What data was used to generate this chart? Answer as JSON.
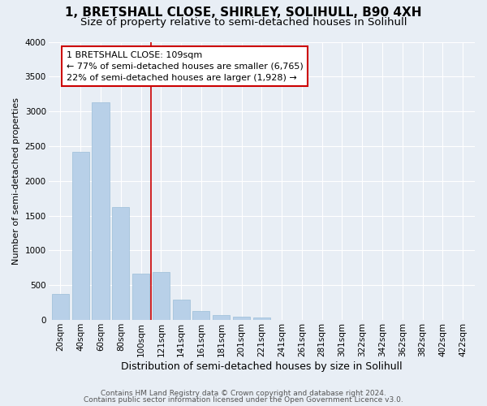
{
  "title1": "1, BRETSHALL CLOSE, SHIRLEY, SOLIHULL, B90 4XH",
  "title2": "Size of property relative to semi-detached houses in Solihull",
  "xlabel": "Distribution of semi-detached houses by size in Solihull",
  "ylabel": "Number of semi-detached properties",
  "footer1": "Contains HM Land Registry data © Crown copyright and database right 2024.",
  "footer2": "Contains public sector information licensed under the Open Government Licence v3.0.",
  "categories": [
    "20sqm",
    "40sqm",
    "60sqm",
    "80sqm",
    "100sqm",
    "121sqm",
    "141sqm",
    "161sqm",
    "181sqm",
    "201sqm",
    "221sqm",
    "241sqm",
    "261sqm",
    "281sqm",
    "301sqm",
    "322sqm",
    "342sqm",
    "362sqm",
    "382sqm",
    "402sqm",
    "422sqm"
  ],
  "values": [
    370,
    2420,
    3130,
    1620,
    670,
    690,
    290,
    130,
    70,
    50,
    30,
    0,
    0,
    0,
    0,
    0,
    0,
    0,
    0,
    0,
    0
  ],
  "bar_color": "#b8d0e8",
  "bar_edgecolor": "#9bbdd8",
  "marker_index": 4,
  "marker_color": "#cc0000",
  "annotation_line1": "1 BRETSHALL CLOSE: 109sqm",
  "annotation_line2": "← 77% of semi-detached houses are smaller (6,765)",
  "annotation_line3": "22% of semi-detached houses are larger (1,928) →",
  "annotation_box_facecolor": "#ffffff",
  "annotation_box_edgecolor": "#cc0000",
  "ylim": [
    0,
    4000
  ],
  "yticks": [
    0,
    500,
    1000,
    1500,
    2000,
    2500,
    3000,
    3500,
    4000
  ],
  "bg_color": "#e8eef5",
  "plot_bg_color": "#e8eef5",
  "grid_color": "#ffffff",
  "title1_fontsize": 11,
  "title2_fontsize": 9.5,
  "xlabel_fontsize": 9,
  "ylabel_fontsize": 8,
  "tick_fontsize": 7.5,
  "annotation_fontsize": 8,
  "footer_fontsize": 6.5
}
